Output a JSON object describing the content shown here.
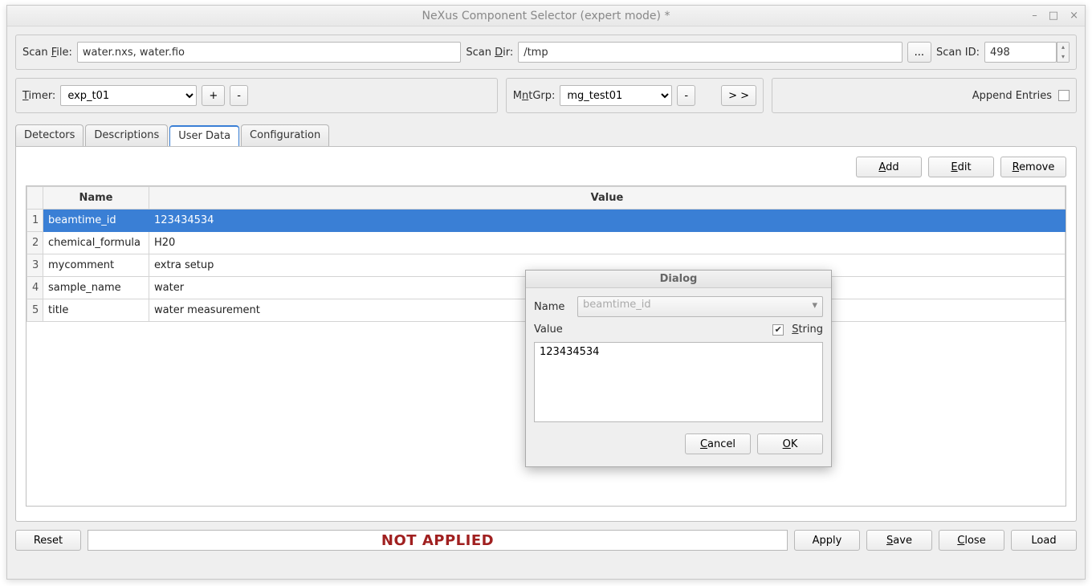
{
  "window": {
    "title": "NeXus Component Selector (expert mode) *"
  },
  "scanbar": {
    "file_label_pre": "Scan ",
    "file_label_u": "F",
    "file_label_post": "ile:",
    "file_value": "water.nxs, water.fio",
    "dir_label_pre": "Scan ",
    "dir_label_u": "D",
    "dir_label_post": "ir:",
    "dir_value": "/tmp",
    "browse_btn": "...",
    "id_label": "Scan ID:",
    "id_value": "498"
  },
  "timerbar": {
    "timer_u": "T",
    "timer_post": "imer:",
    "timer_value": "exp_t01",
    "plus": "+",
    "minus": "-",
    "mntgrp_pre": "M",
    "mntgrp_u": "n",
    "mntgrp_post": "tGrp:",
    "mntgrp_value": "mg_test01",
    "mnt_minus": "-",
    "advance": "> >",
    "append_label": "Append Entries",
    "append_checked": false
  },
  "tabs": [
    "Detectors",
    "Descriptions",
    "User Data",
    "Configuration"
  ],
  "active_tab": 2,
  "userdata": {
    "btn_add_u": "A",
    "btn_add_post": "dd",
    "btn_edit_u": "E",
    "btn_edit_post": "dit",
    "btn_remove_u": "R",
    "btn_remove_post": "emove",
    "columns": [
      "Name",
      "Value"
    ],
    "rows": [
      {
        "n": "1",
        "name": "beamtime_id",
        "value": "123434534",
        "sel": true,
        "dim": false
      },
      {
        "n": "2",
        "name": "chemical_formula",
        "value": "H20",
        "sel": false,
        "dim": false
      },
      {
        "n": "3",
        "name": "mycomment",
        "value": "extra setup",
        "sel": false,
        "dim": true
      },
      {
        "n": "4",
        "name": "sample_name",
        "value": "water",
        "sel": false,
        "dim": false
      },
      {
        "n": "5",
        "name": "title",
        "value": "water measurement",
        "sel": false,
        "dim": false
      }
    ]
  },
  "dialog": {
    "title": "Dialog",
    "name_label": "Name",
    "name_value": "beamtime_id",
    "value_label": "Value",
    "string_u": "S",
    "string_post": "tring",
    "string_checked": true,
    "textarea_value": "123434534",
    "cancel_u": "C",
    "cancel_post": "ancel",
    "ok_u": "O",
    "ok_post": "K"
  },
  "bottom": {
    "reset": "Reset",
    "status": "NOT APPLIED",
    "apply": "Apply",
    "save_u": "S",
    "save_post": "ave",
    "close_u": "C",
    "close_post": "lose",
    "load": "Load"
  },
  "colors": {
    "selection": "#3a7fd5",
    "status_text": "#a02020"
  }
}
